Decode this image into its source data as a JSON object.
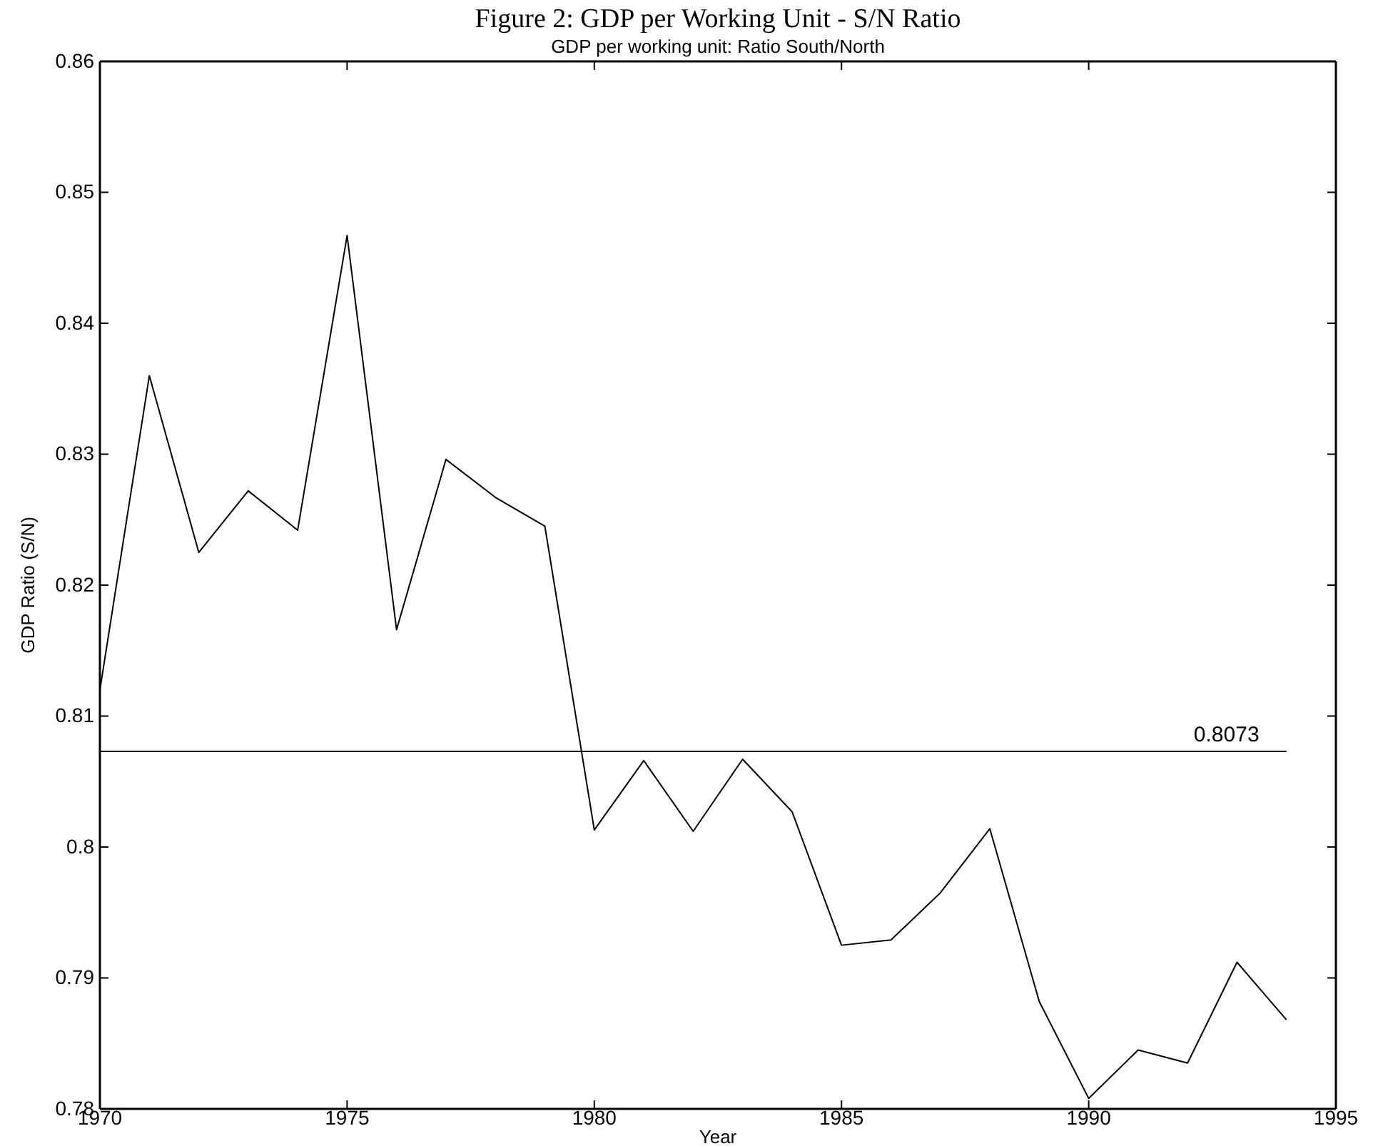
{
  "chart_data": {
    "type": "line",
    "title": "Figure 2: GDP per Working Unit - S/N Ratio",
    "subtitle": "GDP per working unit: Ratio South/North",
    "xlabel": "Year",
    "ylabel": "GDP Ratio (S/N)",
    "x": [
      1970,
      1971,
      1972,
      1973,
      1974,
      1975,
      1976,
      1977,
      1978,
      1979,
      1980,
      1981,
      1982,
      1983,
      1984,
      1985,
      1986,
      1987,
      1988,
      1989,
      1990,
      1991,
      1992,
      1993,
      1994
    ],
    "series": [
      {
        "color": "#000000",
        "values": [
          0.812,
          0.836,
          0.8225,
          0.8272,
          0.8242,
          0.8467,
          0.8166,
          0.8296,
          0.8267,
          0.8245,
          0.8013,
          0.8066,
          0.8012,
          0.8067,
          0.8027,
          0.7925,
          0.7929,
          0.7965,
          0.8014,
          0.7882,
          0.7808,
          0.7845,
          0.7835,
          0.7912,
          0.7868
        ]
      }
    ],
    "xlim": [
      1970,
      1995
    ],
    "xticks": [
      1970,
      1975,
      1980,
      1985,
      1990,
      1995
    ],
    "ylim": [
      0.78,
      0.86
    ],
    "yticks": [
      {
        "value": 0.78,
        "label": "0.78"
      },
      {
        "value": 0.79,
        "label": "0.79"
      },
      {
        "value": 0.8,
        "label": "0.8"
      },
      {
        "value": 0.81,
        "label": "0.81"
      },
      {
        "value": 0.82,
        "label": "0.82"
      },
      {
        "value": 0.83,
        "label": "0.83"
      },
      {
        "value": 0.84,
        "label": "0.84"
      },
      {
        "value": 0.85,
        "label": "0.85"
      },
      {
        "value": 0.86,
        "label": "0.86"
      }
    ],
    "ref_lines": [
      {
        "axis": "y",
        "value": 0.8073,
        "label": "0.8073",
        "color": "#000000"
      }
    ],
    "grid": false,
    "marker": "none",
    "line_style": "solid"
  }
}
